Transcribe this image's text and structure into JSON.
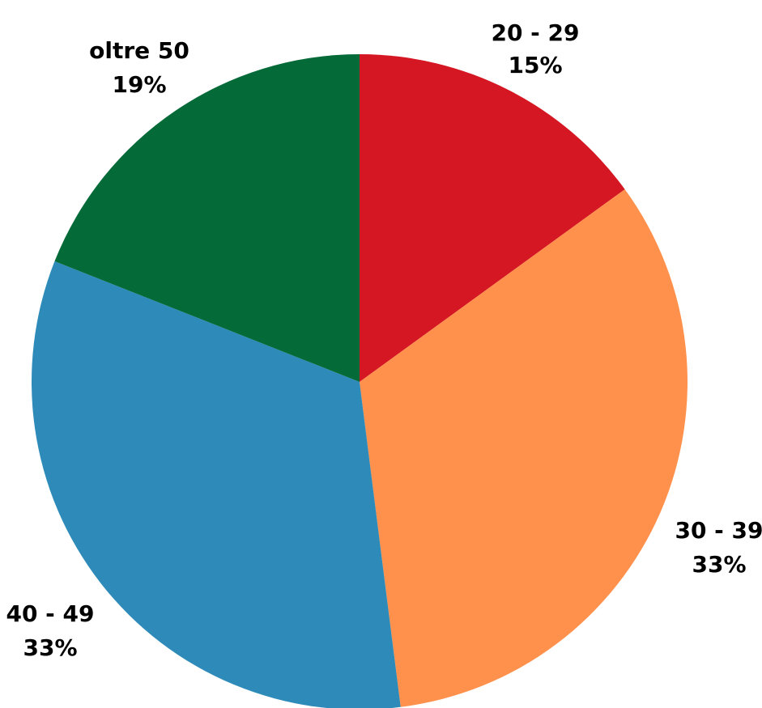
{
  "chart_data": {
    "type": "pie",
    "slices": [
      {
        "category": "20 - 29",
        "value": 15,
        "label": "15%",
        "color": "#d41723"
      },
      {
        "category": "30 - 39",
        "value": 33,
        "label": "33%",
        "color": "#ff914d"
      },
      {
        "category": "40 - 49",
        "value": 33,
        "label": "33%",
        "color": "#2e8bb9"
      },
      {
        "category": "oltre 50",
        "value": 19,
        "label": "19%",
        "color": "#046a38"
      }
    ],
    "start_angle_deg": 0,
    "direction": "clockwise",
    "legend": "none"
  }
}
